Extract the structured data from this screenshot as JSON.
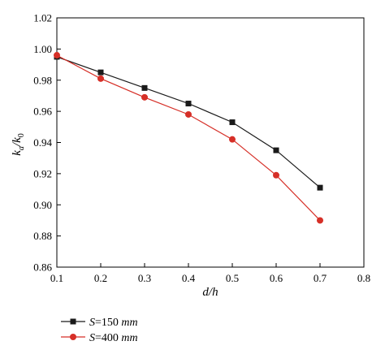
{
  "chart_data": {
    "type": "line",
    "xlabel": "d/h",
    "ylabel_main": "k",
    "ylabel_sub_a": "a",
    "ylabel_sep": "/",
    "ylabel_sub_0": "0",
    "xlim": [
      0.1,
      0.8
    ],
    "ylim": [
      0.86,
      1.02
    ],
    "x_ticks": [
      "0.1",
      "0.2",
      "0.3",
      "0.4",
      "0.5",
      "0.6",
      "0.7",
      "0.8"
    ],
    "y_ticks": [
      "0.86",
      "0.88",
      "0.90",
      "0.92",
      "0.94",
      "0.96",
      "0.98",
      "1.00",
      "1.02"
    ],
    "grid": false,
    "legend_position": "bottom-left",
    "series": [
      {
        "name": "S=150 mm",
        "legend_var": "S",
        "legend_rest": "=150 ",
        "legend_unit": "mm",
        "marker": "square",
        "color": "#1a1a1a",
        "x": [
          0.1,
          0.2,
          0.3,
          0.4,
          0.5,
          0.6,
          0.7
        ],
        "y": [
          0.995,
          0.985,
          0.975,
          0.965,
          0.953,
          0.935,
          0.911
        ]
      },
      {
        "name": "S=400 mm",
        "legend_var": "S",
        "legend_rest": "=400 ",
        "legend_unit": "mm",
        "marker": "circle",
        "color": "#d62f27",
        "x": [
          0.1,
          0.2,
          0.3,
          0.4,
          0.5,
          0.6,
          0.7
        ],
        "y": [
          0.996,
          0.981,
          0.969,
          0.958,
          0.942,
          0.919,
          0.89
        ]
      }
    ]
  }
}
